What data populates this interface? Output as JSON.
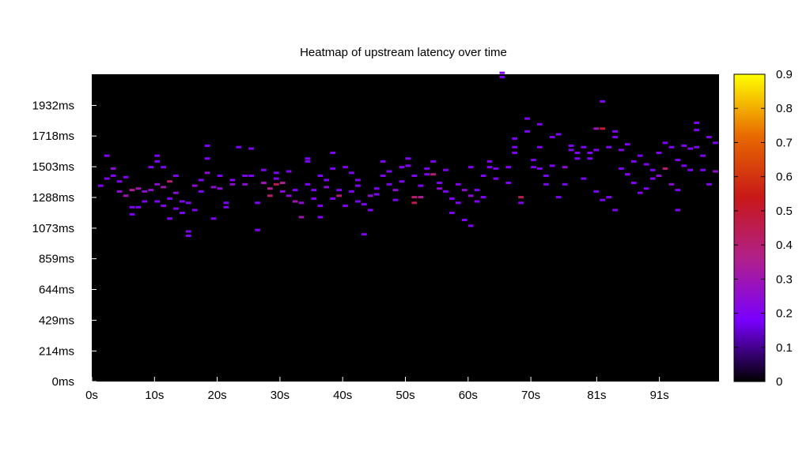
{
  "chart_data": {
    "type": "heatmap",
    "title": "Heatmap of upstream latency over time",
    "xlabel": "",
    "ylabel": "",
    "x_unit": "s",
    "y_unit": "ms",
    "xlim": [
      0,
      100
    ],
    "ylim": [
      0,
      2150
    ],
    "x_ticks": [
      "0s",
      "10s",
      "20s",
      "30s",
      "40s",
      "50s",
      "60s",
      "70s",
      "81s",
      "91s"
    ],
    "x_tick_values": [
      0,
      10,
      20,
      30,
      40,
      50,
      60,
      70,
      80.5,
      90.5
    ],
    "y_ticks": [
      "0ms",
      "214ms",
      "429ms",
      "644ms",
      "859ms",
      "1073ms",
      "1288ms",
      "1503ms",
      "1718ms",
      "1932ms"
    ],
    "y_tick_values": [
      0,
      214,
      429,
      644,
      859,
      1073,
      1288,
      1503,
      1718,
      1932
    ],
    "colorbar": {
      "range": [
        0,
        0.9
      ],
      "ticks": [
        "0",
        "0.1",
        "0.2",
        "0.3",
        "0.4",
        "0.5",
        "0.6",
        "0.7",
        "0.8",
        "0.9"
      ],
      "tick_values": [
        0,
        0.1,
        0.2,
        0.3,
        0.4,
        0.5,
        0.6,
        0.7,
        0.8,
        0.9
      ],
      "palette": [
        "#000000",
        "#7a00ff",
        "#b0208a",
        "#c81818",
        "#e86a00",
        "#ffff00"
      ]
    },
    "background": "#000000",
    "cell_width_s": 1,
    "cell_height_ms": 14,
    "points": [
      [
        1,
        1370,
        0.2
      ],
      [
        2,
        1580,
        0.2
      ],
      [
        2,
        1420,
        0.2
      ],
      [
        3,
        1490,
        0.25
      ],
      [
        3,
        1440,
        0.2
      ],
      [
        4,
        1400,
        0.2
      ],
      [
        4,
        1330,
        0.25
      ],
      [
        5,
        1430,
        0.2
      ],
      [
        5,
        1300,
        0.3
      ],
      [
        6,
        1220,
        0.2
      ],
      [
        6,
        1340,
        0.35
      ],
      [
        6,
        1170,
        0.2
      ],
      [
        7,
        1350,
        0.3
      ],
      [
        7,
        1220,
        0.2
      ],
      [
        8,
        1330,
        0.25
      ],
      [
        8,
        1260,
        0.2
      ],
      [
        9,
        1500,
        0.2
      ],
      [
        9,
        1340,
        0.25
      ],
      [
        10,
        1580,
        0.2
      ],
      [
        10,
        1540,
        0.2
      ],
      [
        10,
        1380,
        0.25
      ],
      [
        10,
        1260,
        0.2
      ],
      [
        11,
        1500,
        0.2
      ],
      [
        11,
        1360,
        0.3
      ],
      [
        11,
        1230,
        0.2
      ],
      [
        12,
        1400,
        0.4
      ],
      [
        12,
        1280,
        0.2
      ],
      [
        12,
        1140,
        0.2
      ],
      [
        13,
        1440,
        0.2
      ],
      [
        13,
        1320,
        0.25
      ],
      [
        13,
        1210,
        0.2
      ],
      [
        14,
        1260,
        0.2
      ],
      [
        14,
        1180,
        0.2
      ],
      [
        15,
        1050,
        0.2
      ],
      [
        15,
        1020,
        0.2
      ],
      [
        15,
        1250,
        0.2
      ],
      [
        16,
        1370,
        0.25
      ],
      [
        16,
        1200,
        0.2
      ],
      [
        17,
        1330,
        0.2
      ],
      [
        17,
        1410,
        0.2
      ],
      [
        18,
        1650,
        0.2
      ],
      [
        18,
        1460,
        0.25
      ],
      [
        18,
        1560,
        0.2
      ],
      [
        19,
        1360,
        0.25
      ],
      [
        19,
        1140,
        0.2
      ],
      [
        20,
        1440,
        0.2
      ],
      [
        20,
        1350,
        0.25
      ],
      [
        21,
        1250,
        0.2
      ],
      [
        21,
        1220,
        0.2
      ],
      [
        22,
        1380,
        0.25
      ],
      [
        22,
        1410,
        0.2
      ],
      [
        23,
        1640,
        0.2
      ],
      [
        24,
        1440,
        0.2
      ],
      [
        24,
        1380,
        0.25
      ],
      [
        25,
        1630,
        0.2
      ],
      [
        25,
        1440,
        0.2
      ],
      [
        26,
        1250,
        0.2
      ],
      [
        26,
        1060,
        0.2
      ],
      [
        27,
        1480,
        0.2
      ],
      [
        27,
        1390,
        0.3
      ],
      [
        28,
        1350,
        0.35
      ],
      [
        28,
        1300,
        0.4
      ],
      [
        29,
        1420,
        0.2
      ],
      [
        29,
        1460,
        0.2
      ],
      [
        29,
        1380,
        0.45
      ],
      [
        30,
        1390,
        0.35
      ],
      [
        30,
        1330,
        0.25
      ],
      [
        31,
        1470,
        0.2
      ],
      [
        31,
        1300,
        0.25
      ],
      [
        32,
        1340,
        0.2
      ],
      [
        32,
        1260,
        0.3
      ],
      [
        33,
        1250,
        0.25
      ],
      [
        33,
        1150,
        0.3
      ],
      [
        34,
        1560,
        0.2
      ],
      [
        34,
        1380,
        0.2
      ],
      [
        34,
        1540,
        0.2
      ],
      [
        35,
        1340,
        0.2
      ],
      [
        35,
        1280,
        0.2
      ],
      [
        36,
        1440,
        0.2
      ],
      [
        36,
        1150,
        0.2
      ],
      [
        36,
        1230,
        0.2
      ],
      [
        37,
        1410,
        0.2
      ],
      [
        37,
        1360,
        0.25
      ],
      [
        38,
        1600,
        0.2
      ],
      [
        38,
        1490,
        0.2
      ],
      [
        38,
        1280,
        0.2
      ],
      [
        39,
        1340,
        0.2
      ],
      [
        39,
        1300,
        0.4
      ],
      [
        40,
        1500,
        0.2
      ],
      [
        40,
        1230,
        0.2
      ],
      [
        41,
        1460,
        0.2
      ],
      [
        41,
        1330,
        0.2
      ],
      [
        42,
        1410,
        0.2
      ],
      [
        42,
        1370,
        0.2
      ],
      [
        42,
        1260,
        0.2
      ],
      [
        43,
        1030,
        0.2
      ],
      [
        43,
        1240,
        0.2
      ],
      [
        44,
        1300,
        0.25
      ],
      [
        44,
        1200,
        0.2
      ],
      [
        45,
        1350,
        0.2
      ],
      [
        45,
        1310,
        0.2
      ],
      [
        46,
        1540,
        0.2
      ],
      [
        46,
        1440,
        0.2
      ],
      [
        47,
        1470,
        0.2
      ],
      [
        47,
        1380,
        0.2
      ],
      [
        48,
        1340,
        0.25
      ],
      [
        48,
        1270,
        0.2
      ],
      [
        49,
        1500,
        0.2
      ],
      [
        49,
        1400,
        0.2
      ],
      [
        50,
        1560,
        0.2
      ],
      [
        50,
        1510,
        0.2
      ],
      [
        51,
        1440,
        0.2
      ],
      [
        51,
        1290,
        0.4
      ],
      [
        51,
        1250,
        0.45
      ],
      [
        52,
        1370,
        0.2
      ],
      [
        52,
        1290,
        0.35
      ],
      [
        53,
        1490,
        0.2
      ],
      [
        53,
        1450,
        0.2
      ],
      [
        54,
        1450,
        0.4
      ],
      [
        54,
        1540,
        0.2
      ],
      [
        55,
        1390,
        0.2
      ],
      [
        55,
        1350,
        0.25
      ],
      [
        56,
        1480,
        0.2
      ],
      [
        56,
        1330,
        0.2
      ],
      [
        57,
        1280,
        0.2
      ],
      [
        57,
        1180,
        0.2
      ],
      [
        58,
        1380,
        0.2
      ],
      [
        58,
        1250,
        0.2
      ],
      [
        59,
        1340,
        0.25
      ],
      [
        59,
        1130,
        0.2
      ],
      [
        60,
        1500,
        0.2
      ],
      [
        60,
        1300,
        0.25
      ],
      [
        60,
        1090,
        0.2
      ],
      [
        61,
        1340,
        0.2
      ],
      [
        61,
        1260,
        0.2
      ],
      [
        62,
        1290,
        0.2
      ],
      [
        62,
        1440,
        0.2
      ],
      [
        63,
        1540,
        0.2
      ],
      [
        63,
        1500,
        0.2
      ],
      [
        64,
        1490,
        0.2
      ],
      [
        64,
        1420,
        0.2
      ],
      [
        65,
        2160,
        0.2
      ],
      [
        65,
        2130,
        0.2
      ],
      [
        66,
        1500,
        0.2
      ],
      [
        66,
        1390,
        0.2
      ],
      [
        67,
        1700,
        0.2
      ],
      [
        67,
        1640,
        0.2
      ],
      [
        67,
        1600,
        0.2
      ],
      [
        68,
        1290,
        0.45
      ],
      [
        68,
        1250,
        0.2
      ],
      [
        69,
        1840,
        0.2
      ],
      [
        69,
        1750,
        0.2
      ],
      [
        70,
        1550,
        0.2
      ],
      [
        70,
        1500,
        0.2
      ],
      [
        71,
        1800,
        0.2
      ],
      [
        71,
        1640,
        0.2
      ],
      [
        71,
        1490,
        0.2
      ],
      [
        72,
        1440,
        0.2
      ],
      [
        72,
        1380,
        0.2
      ],
      [
        73,
        1710,
        0.2
      ],
      [
        73,
        1510,
        0.2
      ],
      [
        74,
        1730,
        0.2
      ],
      [
        74,
        1290,
        0.2
      ],
      [
        75,
        1500,
        0.25
      ],
      [
        75,
        1380,
        0.2
      ],
      [
        76,
        1650,
        0.2
      ],
      [
        76,
        1620,
        0.2
      ],
      [
        77,
        1600,
        0.2
      ],
      [
        77,
        1560,
        0.2
      ],
      [
        78,
        1640,
        0.2
      ],
      [
        78,
        1420,
        0.2
      ],
      [
        79,
        1560,
        0.2
      ],
      [
        79,
        1600,
        0.2
      ],
      [
        80,
        1770,
        0.3
      ],
      [
        80,
        1620,
        0.2
      ],
      [
        80,
        1330,
        0.2
      ],
      [
        81,
        1770,
        0.5
      ],
      [
        81,
        1960,
        0.2
      ],
      [
        81,
        1270,
        0.2
      ],
      [
        82,
        1640,
        0.2
      ],
      [
        82,
        1290,
        0.2
      ],
      [
        83,
        1750,
        0.2
      ],
      [
        83,
        1710,
        0.2
      ],
      [
        83,
        1200,
        0.2
      ],
      [
        84,
        1620,
        0.2
      ],
      [
        84,
        1490,
        0.2
      ],
      [
        85,
        1660,
        0.2
      ],
      [
        85,
        1450,
        0.2
      ],
      [
        86,
        1540,
        0.2
      ],
      [
        86,
        1390,
        0.2
      ],
      [
        87,
        1580,
        0.2
      ],
      [
        87,
        1320,
        0.2
      ],
      [
        88,
        1520,
        0.2
      ],
      [
        88,
        1350,
        0.2
      ],
      [
        89,
        1420,
        0.2
      ],
      [
        89,
        1480,
        0.2
      ],
      [
        90,
        1600,
        0.2
      ],
      [
        90,
        1440,
        0.25
      ],
      [
        91,
        1670,
        0.2
      ],
      [
        91,
        1490,
        0.4
      ],
      [
        92,
        1640,
        0.2
      ],
      [
        92,
        1380,
        0.25
      ],
      [
        93,
        1550,
        0.2
      ],
      [
        93,
        1200,
        0.2
      ],
      [
        93,
        1340,
        0.2
      ],
      [
        94,
        1650,
        0.2
      ],
      [
        94,
        1510,
        0.2
      ],
      [
        95,
        1630,
        0.2
      ],
      [
        95,
        1480,
        0.2
      ],
      [
        96,
        1810,
        0.2
      ],
      [
        96,
        1760,
        0.2
      ],
      [
        96,
        1640,
        0.2
      ],
      [
        97,
        1580,
        0.2
      ],
      [
        97,
        1480,
        0.2
      ],
      [
        98,
        1710,
        0.2
      ],
      [
        98,
        1380,
        0.2
      ],
      [
        99,
        1670,
        0.2
      ],
      [
        99,
        1470,
        0.25
      ]
    ]
  }
}
